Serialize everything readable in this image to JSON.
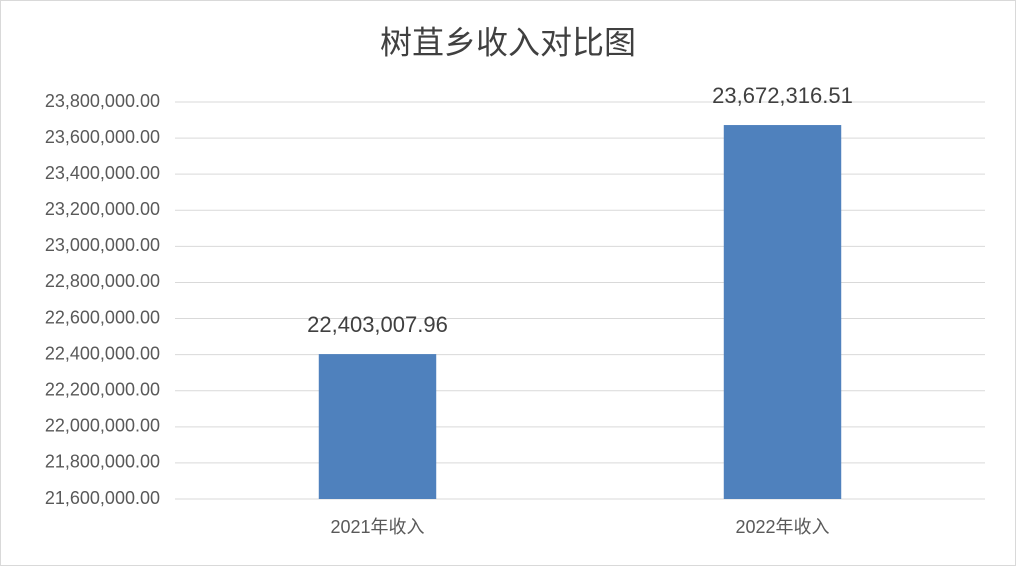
{
  "chart_data": {
    "type": "bar",
    "title": "树苴乡收入对比图",
    "categories": [
      "2021年收入",
      "2022年收入"
    ],
    "values": [
      22403007.96,
      23672316.51
    ],
    "value_labels": [
      "22,403,007.96",
      "23,672,316.51"
    ],
    "color": "#4f81bd",
    "ylim": [
      21600000,
      23800000
    ],
    "yticks": [
      {
        "value": 21600000,
        "label": "21,600,000.00"
      },
      {
        "value": 21800000,
        "label": "21,800,000.00"
      },
      {
        "value": 22000000,
        "label": "22,000,000.00"
      },
      {
        "value": 22200000,
        "label": "22,200,000.00"
      },
      {
        "value": 22400000,
        "label": "22,400,000.00"
      },
      {
        "value": 22600000,
        "label": "22,600,000.00"
      },
      {
        "value": 22800000,
        "label": "22,800,000.00"
      },
      {
        "value": 23000000,
        "label": "23,000,000.00"
      },
      {
        "value": 23200000,
        "label": "23,200,000.00"
      },
      {
        "value": 23400000,
        "label": "23,400,000.00"
      },
      {
        "value": 23600000,
        "label": "23,600,000.00"
      },
      {
        "value": 23800000,
        "label": "23,800,000.00"
      }
    ],
    "grid": true
  }
}
